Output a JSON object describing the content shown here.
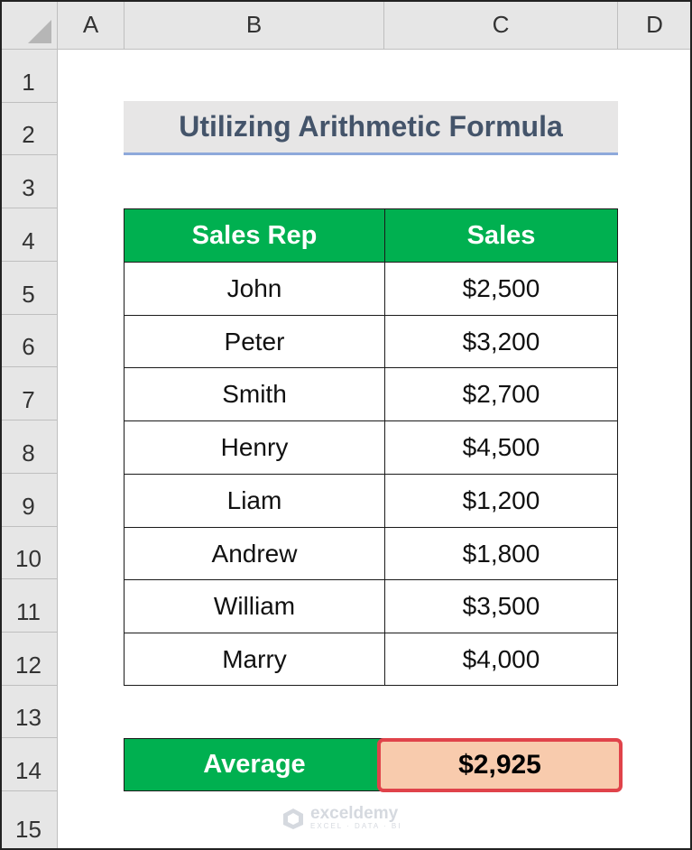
{
  "columns": [
    "A",
    "B",
    "C",
    "D"
  ],
  "rows": [
    "1",
    "2",
    "3",
    "4",
    "5",
    "6",
    "7",
    "8",
    "9",
    "10",
    "11",
    "12",
    "13",
    "14",
    "15"
  ],
  "title": "Utilizing Arithmetic Formula",
  "table": {
    "headers": [
      "Sales Rep",
      "Sales"
    ],
    "rows": [
      [
        "John",
        "$2,500"
      ],
      [
        "Peter",
        "$3,200"
      ],
      [
        "Smith",
        "$2,700"
      ],
      [
        "Henry",
        "$4,500"
      ],
      [
        "Liam",
        "$1,200"
      ],
      [
        "Andrew",
        "$1,800"
      ],
      [
        "William",
        "$3,500"
      ],
      [
        "Marry",
        "$4,000"
      ]
    ]
  },
  "average": {
    "label": "Average",
    "value": "$2,925"
  },
  "watermark": {
    "name": "exceldemy",
    "tagline": "EXCEL · DATA · BI"
  },
  "colors": {
    "header_green": "#00b050",
    "result_fill": "#f8cbad",
    "result_border": "#e0434a",
    "title_fill": "#e7e6e6",
    "title_text": "#44546a"
  }
}
